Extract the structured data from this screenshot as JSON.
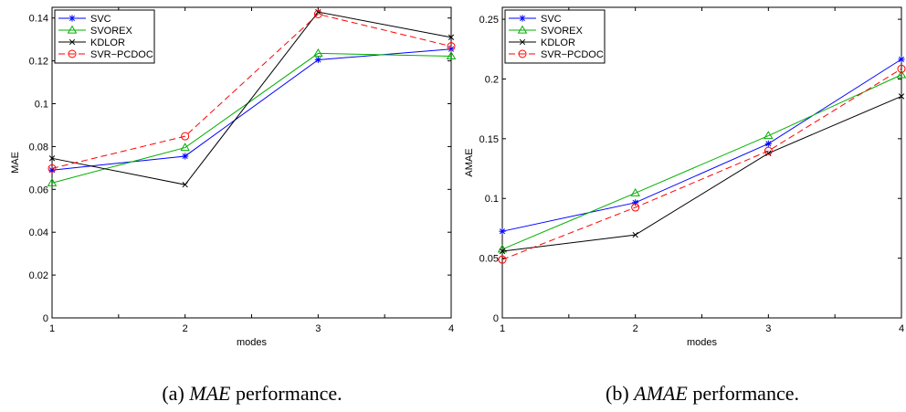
{
  "chart_data": [
    {
      "type": "line",
      "caption_prefix": "(a) ",
      "caption_em": "MAE",
      "caption_suffix": " performance.",
      "xlabel": "modes",
      "ylabel": "MAE",
      "x": [
        1,
        2,
        3,
        4
      ],
      "xlim": [
        1,
        4
      ],
      "ylim": [
        0,
        0.145
      ],
      "xticks": [
        "1",
        "2",
        "3",
        "4"
      ],
      "yticks": [
        0,
        0.02,
        0.04,
        0.06,
        0.08,
        0.1,
        0.12,
        0.14
      ],
      "ytick_labels": [
        "0",
        "0.02",
        "0.04",
        "0.06",
        "0.08",
        "0.1",
        "0.12",
        "0.14"
      ],
      "legend_position": "top-left",
      "series": [
        {
          "name": "SVC",
          "values": [
            0.069,
            0.0755,
            0.1205,
            0.1255
          ],
          "color": "#0000ff",
          "marker": "star",
          "dash": "solid"
        },
        {
          "name": "SVOREX",
          "values": [
            0.063,
            0.0795,
            0.1235,
            0.1222
          ],
          "color": "#00b000",
          "marker": "triangle",
          "dash": "solid"
        },
        {
          "name": "KDLOR",
          "values": [
            0.0745,
            0.0622,
            0.1428,
            0.131
          ],
          "color": "#000000",
          "marker": "x",
          "dash": "solid"
        },
        {
          "name": "SVR−PCDOC",
          "values": [
            0.0698,
            0.0848,
            0.1418,
            0.1268
          ],
          "color": "#ff0000",
          "marker": "circle",
          "dash": "dashed"
        }
      ]
    },
    {
      "type": "line",
      "caption_prefix": "(b) ",
      "caption_em": "AMAE",
      "caption_suffix": " performance.",
      "xlabel": "modes",
      "ylabel": "AMAE",
      "x": [
        1,
        2,
        3,
        4
      ],
      "xlim": [
        1,
        4
      ],
      "ylim": [
        0,
        0.26
      ],
      "xticks": [
        "1",
        "2",
        "3",
        "4"
      ],
      "yticks": [
        0,
        0.05,
        0.1,
        0.15,
        0.2,
        0.25
      ],
      "ytick_labels": [
        "0",
        "0.05",
        "0.1",
        "0.15",
        "0.2",
        "0.25"
      ],
      "legend_position": "top-left",
      "series": [
        {
          "name": "SVC",
          "values": [
            0.0725,
            0.0965,
            0.1458,
            0.2165
          ],
          "color": "#0000ff",
          "marker": "star",
          "dash": "solid"
        },
        {
          "name": "SVOREX",
          "values": [
            0.0575,
            0.1045,
            0.1525,
            0.2035
          ],
          "color": "#00b000",
          "marker": "triangle",
          "dash": "solid"
        },
        {
          "name": "KDLOR",
          "values": [
            0.0558,
            0.0695,
            0.1378,
            0.1855
          ],
          "color": "#000000",
          "marker": "x",
          "dash": "solid"
        },
        {
          "name": "SVR−PCDOC",
          "values": [
            0.0488,
            0.0925,
            0.1398,
            0.2085
          ],
          "color": "#ff0000",
          "marker": "circle",
          "dash": "dashed"
        }
      ]
    }
  ]
}
